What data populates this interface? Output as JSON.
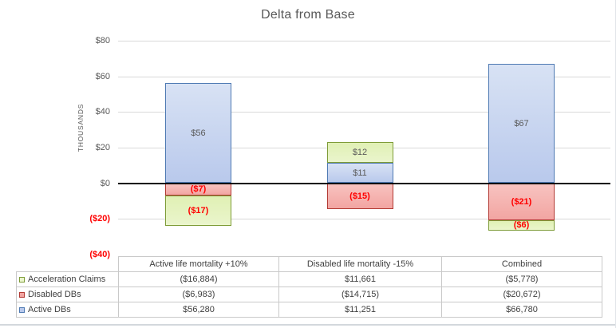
{
  "title": "Delta from Base",
  "axis": {
    "unit_label": "THOUSANDS",
    "ticks": [
      {
        "label": "$80",
        "value": 80,
        "gridline": true
      },
      {
        "label": "$60",
        "value": 60,
        "gridline": true
      },
      {
        "label": "$40",
        "value": 40,
        "gridline": true
      },
      {
        "label": "$20",
        "value": 20,
        "gridline": true
      },
      {
        "label": "$0",
        "value": 0,
        "gridline": true,
        "zero": true
      },
      {
        "label": "($20)",
        "value": -20,
        "gridline": true
      },
      {
        "label": "($40)",
        "value": -40,
        "gridline": false
      }
    ]
  },
  "chart_data": {
    "type": "bar",
    "stacked": true,
    "title": "Delta from Base",
    "ylabel": "THOUSANDS",
    "ylim": [
      -40,
      80
    ],
    "value_unit": "thousands of dollars",
    "categories": [
      "Active life mortality +10%",
      "Disabled life mortality -15%",
      "Combined"
    ],
    "series": [
      {
        "name": "Acceleration Claims",
        "values_thousands": [
          -16.884,
          11.661,
          -5.778
        ],
        "bar_labels": [
          "($17)",
          "$12",
          "($6)"
        ],
        "table_values": [
          "($16,884)",
          "$11,661",
          "($5,778)"
        ],
        "fill": "#e0f0b4",
        "fill2": "#eaf5cc",
        "border": "#7e9c38"
      },
      {
        "name": "Disabled DBs",
        "values_thousands": [
          -6.983,
          -14.715,
          -20.672
        ],
        "bar_labels": [
          "($7)",
          "($15)",
          "($21)"
        ],
        "table_values": [
          "($6,983)",
          "($14,715)",
          "($20,672)"
        ],
        "fill": "#f8c3c0",
        "fill2": "#f2a5a2",
        "border": "#b23a34"
      },
      {
        "name": "Active DBs",
        "values_thousands": [
          56.28,
          11.251,
          66.78
        ],
        "bar_labels": [
          "$56",
          "$11",
          "$67"
        ],
        "table_values": [
          "$56,280",
          "$11,251",
          "$66,780"
        ],
        "fill": "#d8e2f4",
        "fill2": "#b9c9ec",
        "border": "#4f7ab3"
      }
    ],
    "stack_order": [
      "Active DBs",
      "Disabled DBs",
      "Acceleration Claims"
    ],
    "legend_position": "table-left"
  },
  "colors": {
    "title_text": "#595959",
    "axis_text": "#595959",
    "negative_text": "#ff0000",
    "gridline": "#d9d9d9",
    "zero_line": "#000000",
    "table_border": "#c9c9c9",
    "table_text": "#404040"
  }
}
